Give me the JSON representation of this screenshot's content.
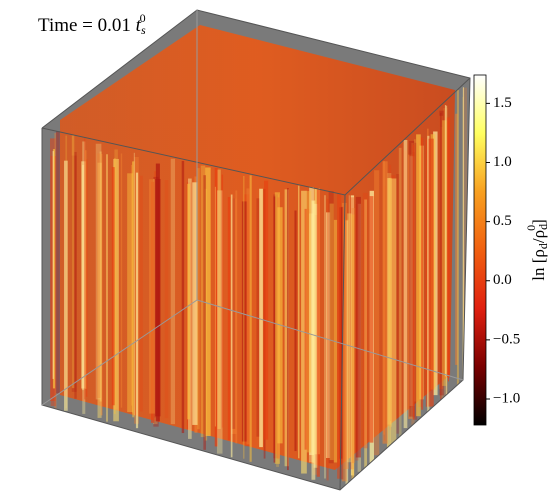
{
  "chart_data": {
    "type": "volume",
    "title": {
      "text": "Time = 0.01 ",
      "var": "t",
      "sub": "s",
      "sup": "0"
    },
    "colorbar": {
      "label": {
        "text": "ln [ρ",
        "sub": "d",
        "mid": "/ρ",
        "sub2": "d",
        "sup2": "0",
        "end": "]"
      },
      "clim": [
        -1.22,
        1.74
      ],
      "ticks": [
        {
          "value": -1.0,
          "label": "−1.0"
        },
        {
          "value": -0.5,
          "label": "−0.5"
        },
        {
          "value": 0.0,
          "label": "0.0"
        },
        0.5,
        {
          "value": 1.0,
          "label": "1.0"
        },
        1.5
      ],
      "colors": [
        "#000000",
        "#7a0000",
        "#e02010",
        "#f06010",
        "#f8a020",
        "#ffff60",
        "#ffffff"
      ]
    }
  }
}
